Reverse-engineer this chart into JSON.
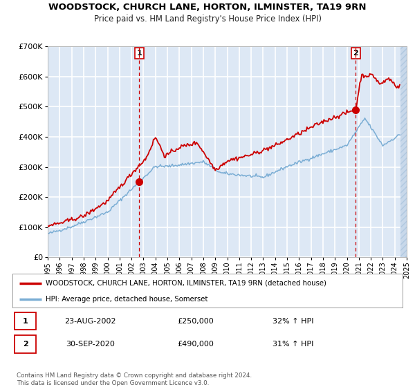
{
  "title": "WOODSTOCK, CHURCH LANE, HORTON, ILMINSTER, TA19 9RN",
  "subtitle": "Price paid vs. HM Land Registry's House Price Index (HPI)",
  "legend_line1": "WOODSTOCK, CHURCH LANE, HORTON, ILMINSTER, TA19 9RN (detached house)",
  "legend_line2": "HPI: Average price, detached house, Somerset",
  "sale1_date": "23-AUG-2002",
  "sale1_price": "£250,000",
  "sale1_hpi": "32% ↑ HPI",
  "sale1_year": 2002.64,
  "sale1_value": 250000,
  "sale2_date": "30-SEP-2020",
  "sale2_price": "£490,000",
  "sale2_hpi": "31% ↑ HPI",
  "sale2_year": 2020.75,
  "sale2_value": 490000,
  "red_line_color": "#cc0000",
  "blue_line_color": "#7aadd4",
  "plot_bg_color": "#dde8f5",
  "grid_color": "#ffffff",
  "hatch_color": "#c8d8ea",
  "footer": "Contains HM Land Registry data © Crown copyright and database right 2024.\nThis data is licensed under the Open Government Licence v3.0.",
  "ylim": [
    0,
    700000
  ],
  "xlim_start": 1995,
  "xlim_end": 2025,
  "data_end": 2024.5
}
